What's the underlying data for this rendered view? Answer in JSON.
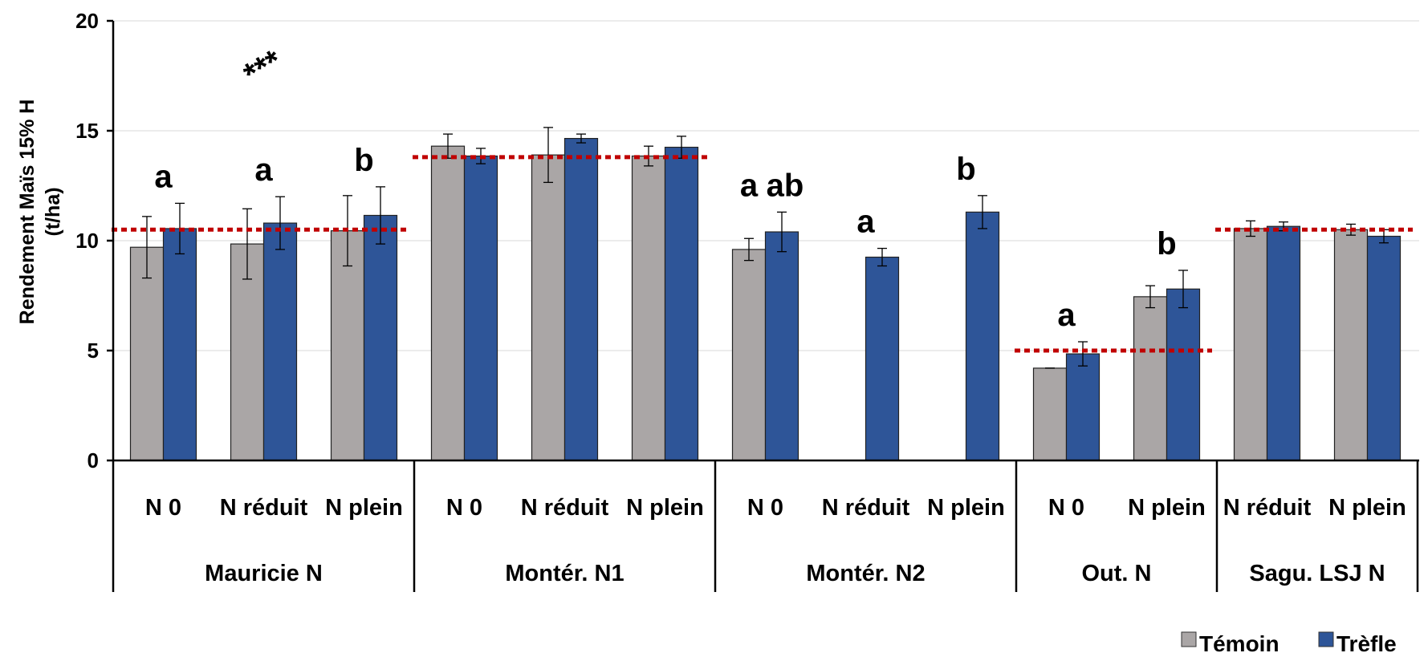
{
  "chart_data": {
    "type": "bar",
    "ylabel_lines": [
      "Rendement Maïs 15% H",
      "(t/ha)"
    ],
    "ylim": [
      0,
      20
    ],
    "yticks": [
      "0",
      "5",
      "10",
      "15",
      "20"
    ],
    "grid": true,
    "legend_position": "bottom-right",
    "series": [
      {
        "name": "Témoin",
        "color": "#aaa6a6"
      },
      {
        "name": "Trèfle",
        "color": "#2e5598"
      }
    ],
    "groups": [
      {
        "name": "Mauricie N",
        "mean_line": 10.5,
        "categories": [
          {
            "label": "N 0",
            "temoin": 9.7,
            "temoin_err": 1.4,
            "trefle": 10.55,
            "trefle_err": 1.15,
            "letter": "a"
          },
          {
            "label": "N réduit",
            "temoin": 9.85,
            "temoin_err": 1.6,
            "trefle": 10.8,
            "trefle_err": 1.2,
            "letter": "a"
          },
          {
            "label": "N plein",
            "temoin": 10.45,
            "temoin_err": 1.6,
            "trefle": 11.15,
            "trefle_err": 1.3,
            "letter": "b"
          }
        ]
      },
      {
        "name": "Montér. N1",
        "mean_line": 13.8,
        "categories": [
          {
            "label": "N 0",
            "temoin": 14.3,
            "temoin_err": 0.55,
            "trefle": 13.85,
            "trefle_err": 0.35,
            "letter": ""
          },
          {
            "label": "N réduit",
            "temoin": 13.9,
            "temoin_err": 1.25,
            "trefle": 14.65,
            "trefle_err": 0.2,
            "letter": ""
          },
          {
            "label": "N plein",
            "temoin": 13.85,
            "temoin_err": 0.45,
            "trefle": 14.25,
            "trefle_err": 0.5,
            "letter": ""
          }
        ]
      },
      {
        "name": "Montér. N2",
        "mean_line": null,
        "categories": [
          {
            "label": "N 0",
            "temoin": 9.6,
            "temoin_err": 0.5,
            "trefle": 10.4,
            "trefle_err": 0.9,
            "letter": "a ab"
          },
          {
            "label": "N réduit",
            "temoin": null,
            "temoin_err": null,
            "trefle": 9.25,
            "trefle_err": 0.4,
            "letter": "a"
          },
          {
            "label": "N plein",
            "temoin": null,
            "temoin_err": null,
            "trefle": 11.3,
            "trefle_err": 0.75,
            "letter": "b"
          }
        ]
      },
      {
        "name": "Out. N",
        "mean_line": 5.0,
        "categories": [
          {
            "label": "N 0",
            "temoin": 4.2,
            "temoin_err": 0.0,
            "trefle": 4.85,
            "trefle_err": 0.55,
            "letter": "a"
          },
          {
            "label": "N plein",
            "temoin": 7.45,
            "temoin_err": 0.5,
            "trefle": 7.8,
            "trefle_err": 0.85,
            "letter": "b"
          }
        ]
      },
      {
        "name": "Sagu. LSJ N",
        "mean_line": 10.5,
        "categories": [
          {
            "label": "N réduit",
            "temoin": 10.55,
            "temoin_err": 0.35,
            "trefle": 10.65,
            "trefle_err": 0.2,
            "letter": ""
          },
          {
            "label": "N plein",
            "temoin": 10.5,
            "temoin_err": 0.25,
            "trefle": 10.2,
            "trefle_err": 0.3,
            "letter": ""
          }
        ]
      }
    ],
    "annotations": [
      {
        "text": "***",
        "near": "Mauricie N"
      }
    ],
    "mean_line_color": "#c00000"
  }
}
